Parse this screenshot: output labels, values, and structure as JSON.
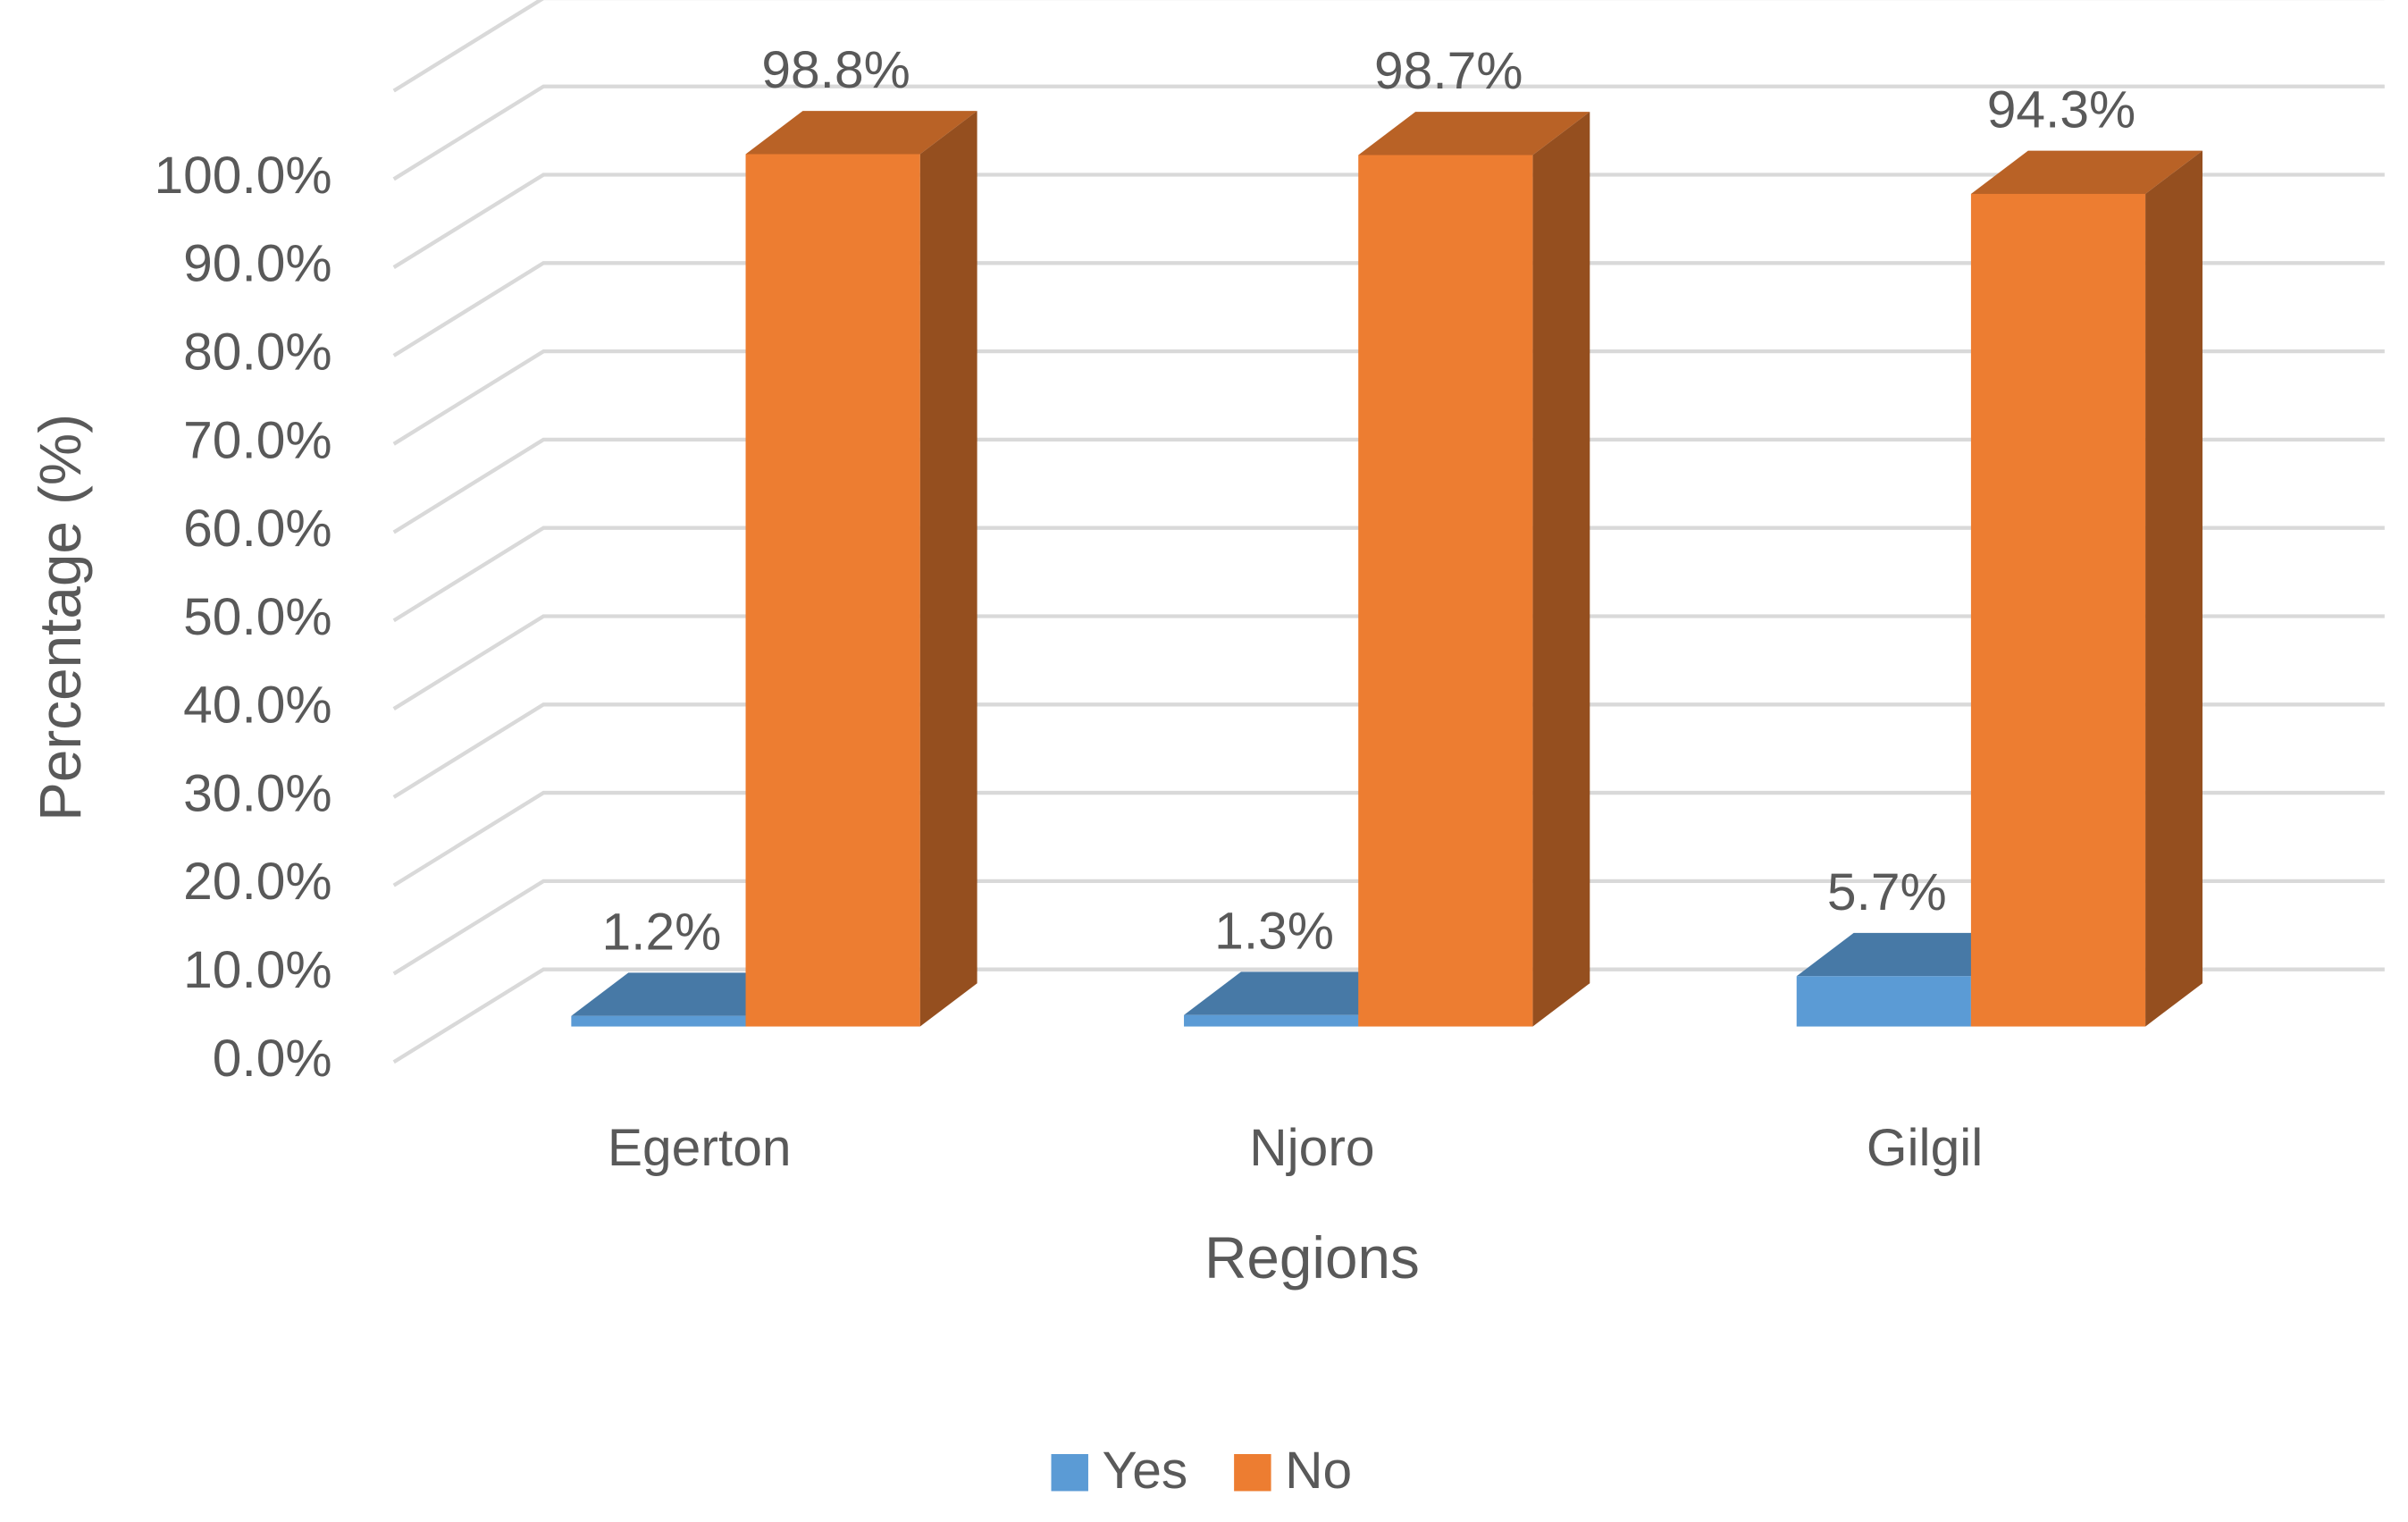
{
  "chart_data": {
    "type": "bar3d",
    "x_label": "Regions",
    "y_label": "Percentage (%)",
    "categories": [
      "Egerton",
      "Njoro",
      "Gilgil"
    ],
    "series": [
      {
        "name": "Yes",
        "color": "#5b9bd5",
        "values": [
          1.2,
          1.3,
          5.7
        ],
        "value_labels": [
          "1.2%",
          "1.3%",
          "5.7%"
        ]
      },
      {
        "name": "No",
        "color": "#ed7d31",
        "values": [
          98.8,
          98.7,
          94.3
        ],
        "value_labels": [
          "98.8%",
          "98.7%",
          "94.3%"
        ]
      }
    ],
    "ylim": [
      0,
      110
    ],
    "yticks": [
      {
        "value": 0,
        "label": "0.0%"
      },
      {
        "value": 10,
        "label": "10.0%"
      },
      {
        "value": 20,
        "label": "20.0%"
      },
      {
        "value": 30,
        "label": "30.0%"
      },
      {
        "value": 40,
        "label": "40.0%"
      },
      {
        "value": 50,
        "label": "50.0%"
      },
      {
        "value": 60,
        "label": "60.0%"
      },
      {
        "value": 70,
        "label": "70.0%"
      },
      {
        "value": 80,
        "label": "80.0%"
      },
      {
        "value": 90,
        "label": "90.0%"
      },
      {
        "value": 100,
        "label": "100.0%"
      }
    ],
    "grid": true,
    "legend": "bottom"
  }
}
